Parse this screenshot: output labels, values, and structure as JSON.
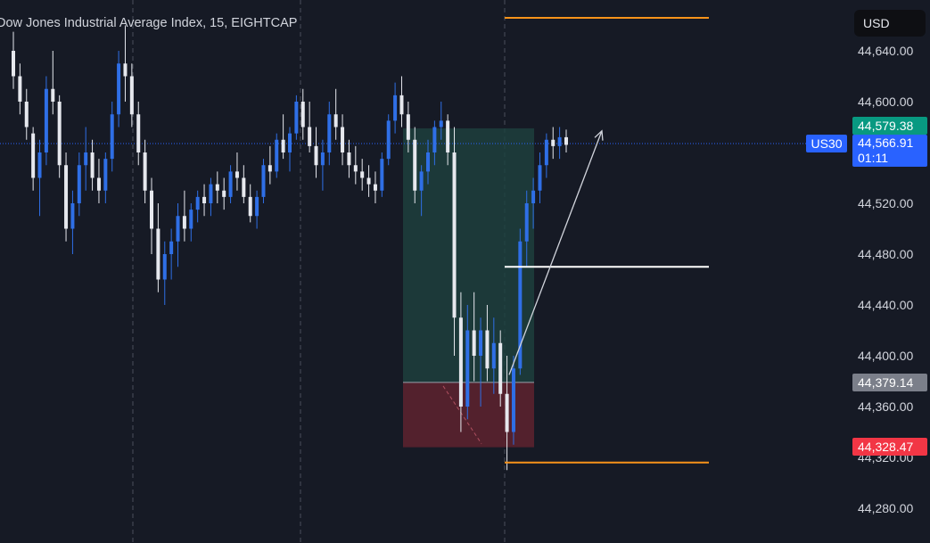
{
  "title": "Dow Jones Industrial Average Index, 15, EIGHTCAP",
  "currency": "USD",
  "symbol": "US30",
  "colors": {
    "background": "#161a25",
    "up": "#2f6fe6",
    "down": "#e6e8ee",
    "profit_zone": "#1d3f3d",
    "loss_zone": "#5a222f",
    "target_line": "#f7931a",
    "entry_line": "#ffffff",
    "price_line": "#2962ff",
    "price_label_green": "#089981",
    "price_label_gray": "#7b7f8a",
    "price_label_red": "#f23645"
  },
  "chart_data": {
    "type": "candlestick",
    "title": "Dow Jones Industrial Average Index, 15, EIGHTCAP",
    "ylim": [
      44260,
      44670
    ],
    "y_ticks": [
      "44,640.00",
      "44,600.00",
      "44,520.00",
      "44,480.00",
      "44,440.00",
      "44,400.00",
      "44,360.00",
      "44,320.00",
      "44,280.00"
    ],
    "grid": "vertical dashed session separators",
    "last_price": "44,566.91",
    "countdown": "01:11",
    "current_price_line": 44567,
    "price_labels": [
      {
        "value": "44,579.38",
        "style": "green"
      },
      {
        "value": "44,379.14",
        "style": "gray"
      },
      {
        "value": "44,328.47",
        "style": "red"
      }
    ],
    "horizontal_levels": [
      {
        "value": 44666,
        "color": "orange"
      },
      {
        "value": 44470,
        "color": "white"
      },
      {
        "value": 44316,
        "color": "orange"
      }
    ],
    "position_tool": {
      "entry": 44379,
      "target": 44579,
      "stop": 44328
    },
    "arrow": {
      "from": 44385,
      "to": 44577
    },
    "candles": [
      [
        44640,
        44655,
        44610,
        44620
      ],
      [
        44620,
        44630,
        44590,
        44600
      ],
      [
        44600,
        44610,
        44570,
        44580
      ],
      [
        44575,
        44580,
        44530,
        44540
      ],
      [
        44540,
        44570,
        44510,
        44560
      ],
      [
        44560,
        44620,
        44550,
        44610
      ],
      [
        44610,
        44640,
        44590,
        44600
      ],
      [
        44600,
        44605,
        44540,
        44550
      ],
      [
        44550,
        44560,
        44490,
        44500
      ],
      [
        44500,
        44530,
        44480,
        44520
      ],
      [
        44520,
        44560,
        44510,
        44550
      ],
      [
        44550,
        44580,
        44530,
        44560
      ],
      [
        44560,
        44570,
        44530,
        44540
      ],
      [
        44540,
        44555,
        44520,
        44530
      ],
      [
        44530,
        44560,
        44520,
        44555
      ],
      [
        44555,
        44600,
        44545,
        44590
      ],
      [
        44590,
        44640,
        44580,
        44630
      ],
      [
        44630,
        44660,
        44600,
        44620
      ],
      [
        44620,
        44630,
        44580,
        44590
      ],
      [
        44590,
        44600,
        44550,
        44560
      ],
      [
        44560,
        44570,
        44520,
        44530
      ],
      [
        44530,
        44540,
        44480,
        44500
      ],
      [
        44500,
        44520,
        44450,
        44460
      ],
      [
        44460,
        44490,
        44440,
        44480
      ],
      [
        44480,
        44500,
        44460,
        44490
      ],
      [
        44490,
        44520,
        44470,
        44510
      ],
      [
        44510,
        44530,
        44490,
        44500
      ],
      [
        44500,
        44520,
        44490,
        44515
      ],
      [
        44515,
        44530,
        44505,
        44525
      ],
      [
        44525,
        44535,
        44510,
        44520
      ],
      [
        44520,
        44540,
        44510,
        44535
      ],
      [
        44535,
        44545,
        44520,
        44530
      ],
      [
        44530,
        44540,
        44515,
        44525
      ],
      [
        44525,
        44550,
        44520,
        44545
      ],
      [
        44545,
        44560,
        44530,
        44540
      ],
      [
        44540,
        44550,
        44520,
        44525
      ],
      [
        44525,
        44535,
        44505,
        44510
      ],
      [
        44510,
        44530,
        44500,
        44525
      ],
      [
        44525,
        44555,
        44520,
        44550
      ],
      [
        44550,
        44565,
        44535,
        44545
      ],
      [
        44545,
        44575,
        44540,
        44570
      ],
      [
        44570,
        44590,
        44555,
        44560
      ],
      [
        44560,
        44580,
        44545,
        44575
      ],
      [
        44575,
        44605,
        44570,
        44600
      ],
      [
        44600,
        44610,
        44570,
        44580
      ],
      [
        44580,
        44600,
        44560,
        44565
      ],
      [
        44565,
        44580,
        44540,
        44550
      ],
      [
        44550,
        44570,
        44530,
        44560
      ],
      [
        44560,
        44600,
        44550,
        44590
      ],
      [
        44590,
        44610,
        44570,
        44580
      ],
      [
        44580,
        44590,
        44550,
        44560
      ],
      [
        44560,
        44570,
        44540,
        44550
      ],
      [
        44550,
        44565,
        44535,
        44545
      ],
      [
        44545,
        44555,
        44530,
        44540
      ],
      [
        44540,
        44550,
        44525,
        44535
      ],
      [
        44535,
        44545,
        44520,
        44530
      ],
      [
        44530,
        44560,
        44525,
        44555
      ],
      [
        44555,
        44590,
        44550,
        44585
      ],
      [
        44585,
        44615,
        44575,
        44605
      ],
      [
        44605,
        44620,
        44580,
        44590
      ],
      [
        44590,
        44600,
        44560,
        44570
      ],
      [
        44570,
        44580,
        44520,
        44530
      ],
      [
        44530,
        44550,
        44510,
        44545
      ],
      [
        44545,
        44570,
        44535,
        44560
      ],
      [
        44560,
        44585,
        44550,
        44580
      ],
      [
        44580,
        44600,
        44570,
        44585
      ],
      [
        44585,
        44590,
        44550,
        44560
      ],
      [
        44560,
        44580,
        44400,
        44430
      ],
      [
        44430,
        44450,
        44340,
        44360
      ],
      [
        44360,
        44440,
        44350,
        44420
      ],
      [
        44420,
        44450,
        44380,
        44400
      ],
      [
        44400,
        44430,
        44360,
        44420
      ],
      [
        44420,
        44440,
        44380,
        44390
      ],
      [
        44390,
        44430,
        44370,
        44410
      ],
      [
        44410,
        44420,
        44360,
        44370
      ],
      [
        44370,
        44400,
        44310,
        44340
      ],
      [
        44340,
        44400,
        44330,
        44390
      ],
      [
        44390,
        44500,
        44385,
        44490
      ],
      [
        44490,
        44530,
        44470,
        44520
      ],
      [
        44520,
        44540,
        44500,
        44530
      ],
      [
        44530,
        44560,
        44520,
        44550
      ],
      [
        44550,
        44575,
        44540,
        44570
      ],
      [
        44570,
        44580,
        44555,
        44565
      ],
      [
        44565,
        44580,
        44555,
        44572
      ],
      [
        44572,
        44578,
        44560,
        44566
      ]
    ]
  }
}
